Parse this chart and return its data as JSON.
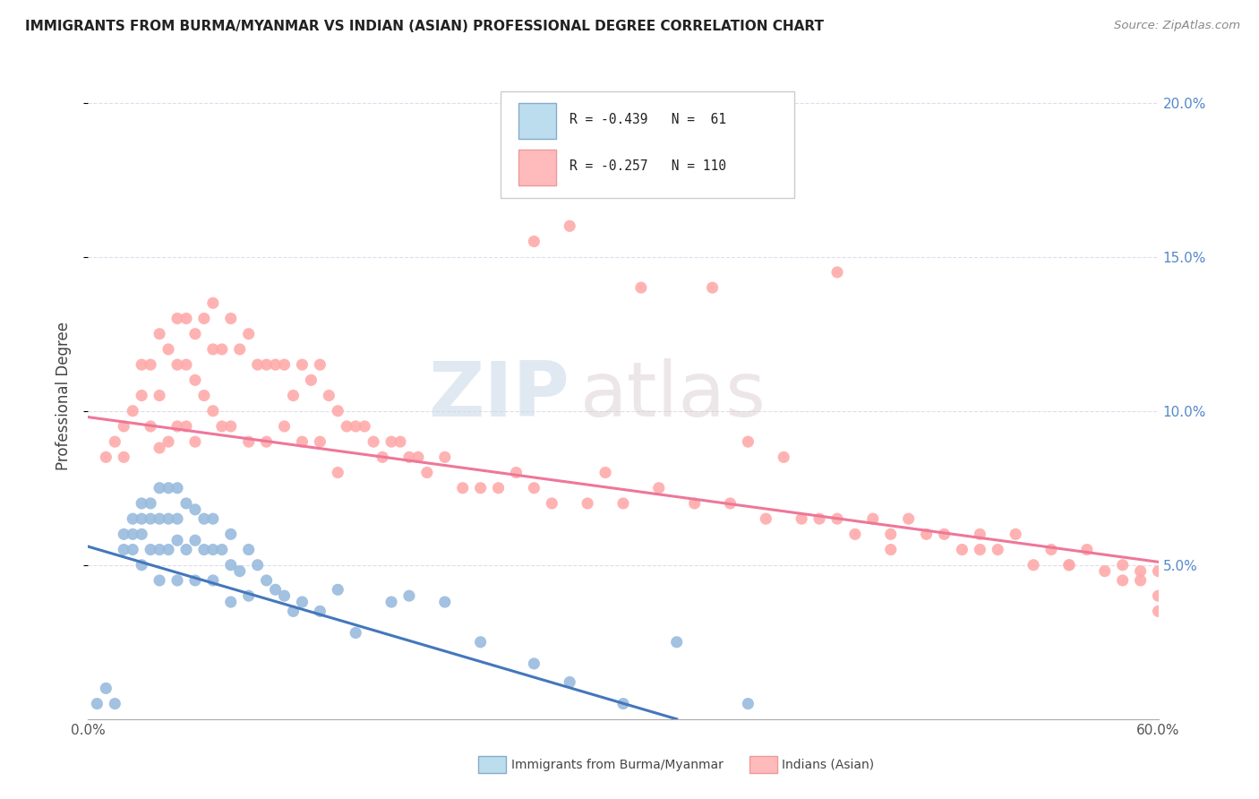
{
  "title": "IMMIGRANTS FROM BURMA/MYANMAR VS INDIAN (ASIAN) PROFESSIONAL DEGREE CORRELATION CHART",
  "source": "Source: ZipAtlas.com",
  "ylabel": "Professional Degree",
  "xlim": [
    0.0,
    0.6
  ],
  "ylim": [
    0.0,
    0.21
  ],
  "yticks_right": [
    0.05,
    0.1,
    0.15,
    0.2
  ],
  "ytick_right_labels": [
    "5.0%",
    "10.0%",
    "15.0%",
    "20.0%"
  ],
  "legend_blue_R": "-0.439",
  "legend_blue_N": "61",
  "legend_pink_R": "-0.257",
  "legend_pink_N": "110",
  "blue_color": "#99BBDD",
  "pink_color": "#FFAAAA",
  "blue_line_color": "#4477BB",
  "pink_line_color": "#EE7799",
  "watermark_zip": "ZIP",
  "watermark_atlas": "atlas",
  "background_color": "#FFFFFF",
  "grid_color": "#DDDDEE",
  "blue_line_x0": 0.0,
  "blue_line_y0": 0.056,
  "blue_line_x1": 0.33,
  "blue_line_y1": 0.0,
  "pink_line_x0": 0.0,
  "pink_line_y0": 0.098,
  "pink_line_x1": 0.6,
  "pink_line_y1": 0.051,
  "blue_scatter_x": [
    0.005,
    0.01,
    0.015,
    0.02,
    0.02,
    0.025,
    0.025,
    0.025,
    0.03,
    0.03,
    0.03,
    0.03,
    0.035,
    0.035,
    0.035,
    0.04,
    0.04,
    0.04,
    0.04,
    0.045,
    0.045,
    0.045,
    0.05,
    0.05,
    0.05,
    0.05,
    0.055,
    0.055,
    0.06,
    0.06,
    0.06,
    0.065,
    0.065,
    0.07,
    0.07,
    0.07,
    0.075,
    0.08,
    0.08,
    0.08,
    0.085,
    0.09,
    0.09,
    0.095,
    0.1,
    0.105,
    0.11,
    0.115,
    0.12,
    0.13,
    0.14,
    0.15,
    0.17,
    0.18,
    0.2,
    0.22,
    0.25,
    0.27,
    0.3,
    0.33,
    0.37
  ],
  "blue_scatter_y": [
    0.005,
    0.01,
    0.005,
    0.06,
    0.055,
    0.065,
    0.06,
    0.055,
    0.07,
    0.065,
    0.06,
    0.05,
    0.07,
    0.065,
    0.055,
    0.075,
    0.065,
    0.055,
    0.045,
    0.075,
    0.065,
    0.055,
    0.075,
    0.065,
    0.058,
    0.045,
    0.07,
    0.055,
    0.068,
    0.058,
    0.045,
    0.065,
    0.055,
    0.065,
    0.055,
    0.045,
    0.055,
    0.06,
    0.05,
    0.038,
    0.048,
    0.055,
    0.04,
    0.05,
    0.045,
    0.042,
    0.04,
    0.035,
    0.038,
    0.035,
    0.042,
    0.028,
    0.038,
    0.04,
    0.038,
    0.025,
    0.018,
    0.012,
    0.005,
    0.025,
    0.005
  ],
  "pink_scatter_x": [
    0.01,
    0.015,
    0.02,
    0.02,
    0.025,
    0.03,
    0.03,
    0.035,
    0.035,
    0.04,
    0.04,
    0.04,
    0.045,
    0.045,
    0.05,
    0.05,
    0.05,
    0.055,
    0.055,
    0.055,
    0.06,
    0.06,
    0.06,
    0.065,
    0.065,
    0.07,
    0.07,
    0.07,
    0.075,
    0.075,
    0.08,
    0.08,
    0.085,
    0.09,
    0.09,
    0.095,
    0.1,
    0.1,
    0.105,
    0.11,
    0.11,
    0.115,
    0.12,
    0.12,
    0.125,
    0.13,
    0.13,
    0.135,
    0.14,
    0.14,
    0.145,
    0.15,
    0.155,
    0.16,
    0.165,
    0.17,
    0.175,
    0.18,
    0.185,
    0.19,
    0.2,
    0.21,
    0.22,
    0.23,
    0.24,
    0.25,
    0.26,
    0.28,
    0.29,
    0.3,
    0.32,
    0.34,
    0.36,
    0.38,
    0.4,
    0.42,
    0.44,
    0.46,
    0.48,
    0.5,
    0.52,
    0.54,
    0.56,
    0.58,
    0.59,
    0.6,
    0.25,
    0.27,
    0.31,
    0.35,
    0.37,
    0.39,
    0.41,
    0.43,
    0.45,
    0.47,
    0.49,
    0.51,
    0.53,
    0.55,
    0.57,
    0.59,
    0.38,
    0.42,
    0.45,
    0.5,
    0.55,
    0.58,
    0.6,
    0.6
  ],
  "pink_scatter_y": [
    0.085,
    0.09,
    0.095,
    0.085,
    0.1,
    0.115,
    0.105,
    0.115,
    0.095,
    0.125,
    0.105,
    0.088,
    0.12,
    0.09,
    0.13,
    0.115,
    0.095,
    0.13,
    0.115,
    0.095,
    0.125,
    0.11,
    0.09,
    0.13,
    0.105,
    0.135,
    0.12,
    0.1,
    0.12,
    0.095,
    0.13,
    0.095,
    0.12,
    0.125,
    0.09,
    0.115,
    0.115,
    0.09,
    0.115,
    0.115,
    0.095,
    0.105,
    0.115,
    0.09,
    0.11,
    0.115,
    0.09,
    0.105,
    0.1,
    0.08,
    0.095,
    0.095,
    0.095,
    0.09,
    0.085,
    0.09,
    0.09,
    0.085,
    0.085,
    0.08,
    0.085,
    0.075,
    0.075,
    0.075,
    0.08,
    0.075,
    0.07,
    0.07,
    0.08,
    0.07,
    0.075,
    0.07,
    0.07,
    0.065,
    0.065,
    0.065,
    0.065,
    0.065,
    0.06,
    0.06,
    0.06,
    0.055,
    0.055,
    0.05,
    0.048,
    0.048,
    0.155,
    0.16,
    0.14,
    0.14,
    0.09,
    0.085,
    0.065,
    0.06,
    0.06,
    0.06,
    0.055,
    0.055,
    0.05,
    0.05,
    0.048,
    0.045,
    0.185,
    0.145,
    0.055,
    0.055,
    0.05,
    0.045,
    0.04,
    0.035
  ]
}
